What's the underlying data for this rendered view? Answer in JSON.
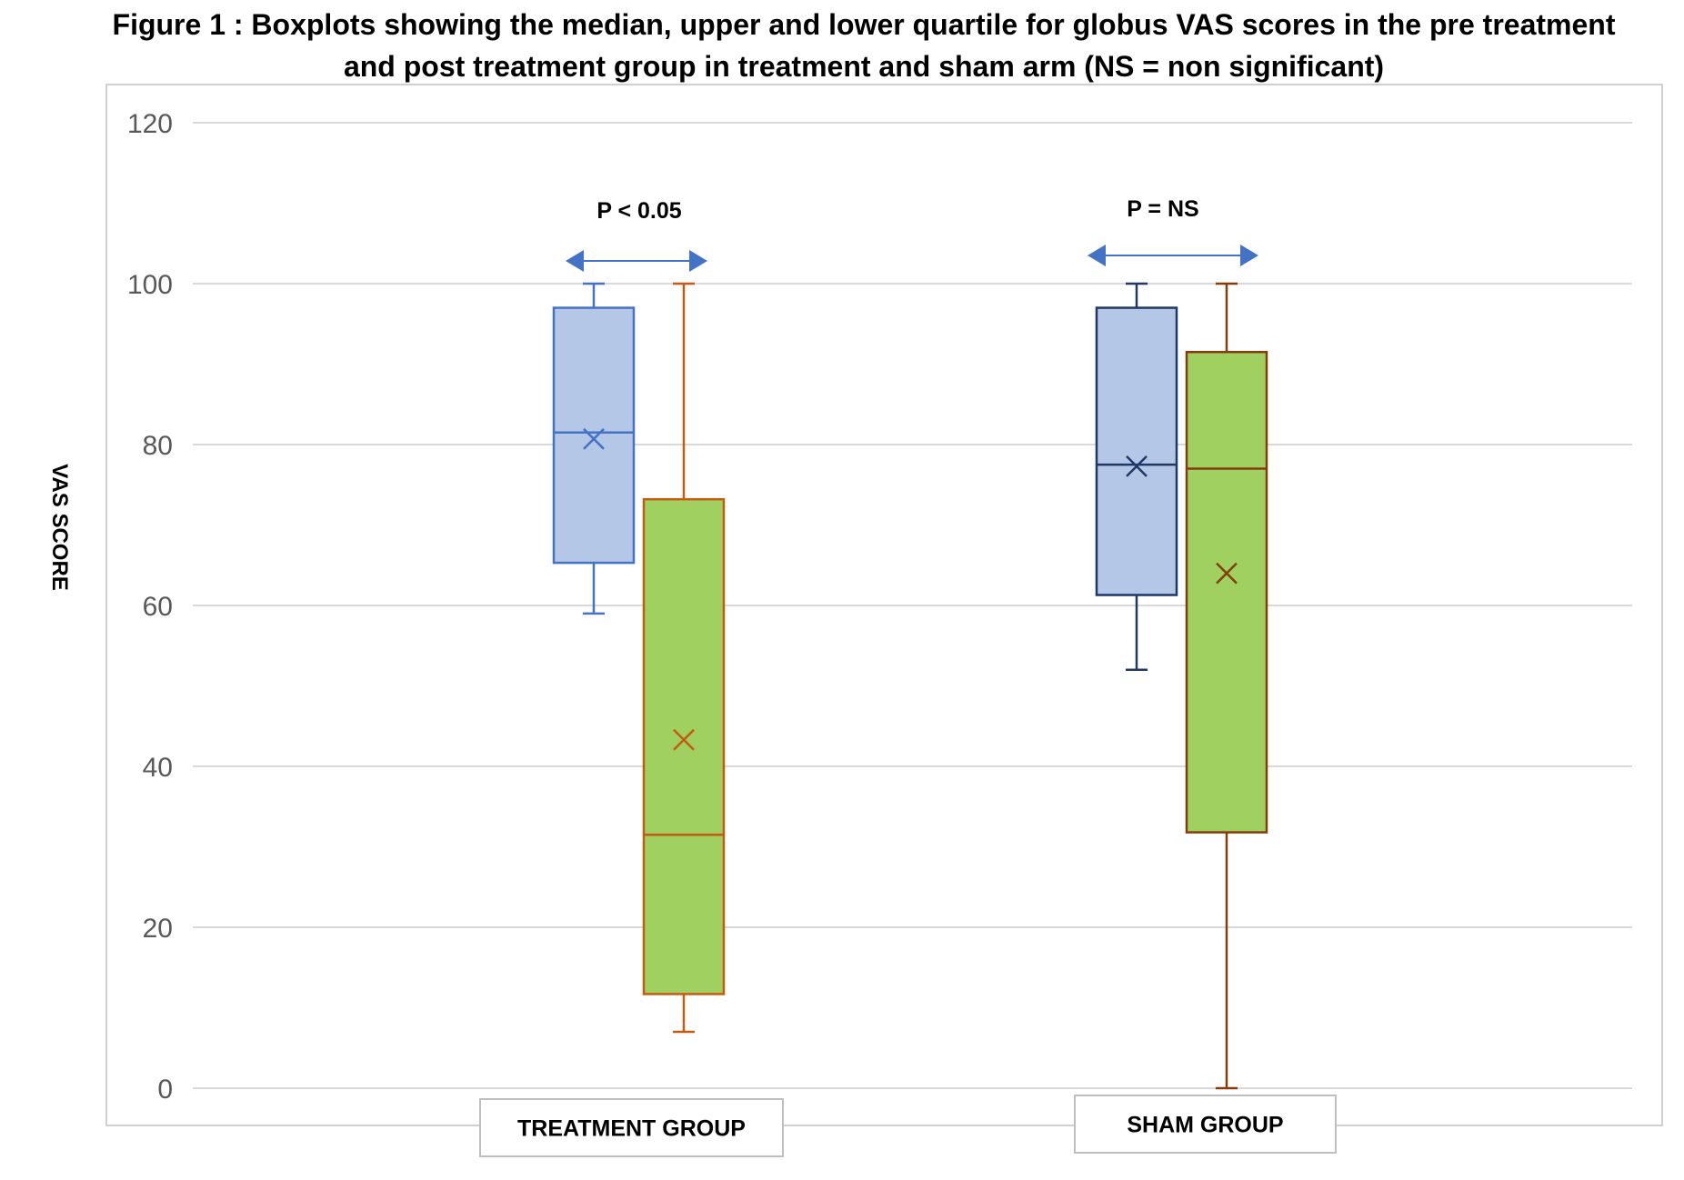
{
  "title": {
    "line1": "Figure 1 : Boxplots showing the median, upper and lower quartile for globus VAS scores in the pre treatment",
    "line2": "and post treatment group in treatment and sham arm (NS = non significant)"
  },
  "chart_data": {
    "type": "boxplot",
    "title": "Figure 1 : Boxplots showing the median, upper and lower quartile for globus VAS scores in the pre treatment and post treatment group in treatment and sham arm (NS = non significant)",
    "ylabel": "VAS SCORE",
    "xlabel": "",
    "ylim": [
      0,
      120
    ],
    "yticks": [
      0,
      20,
      40,
      60,
      80,
      100,
      120
    ],
    "grid": true,
    "categories": [
      "TREATMENT GROUP",
      "SHAM GROUP"
    ],
    "colors": {
      "pre_fill": "#b4c7e7",
      "pre_stroke": "#4472c4",
      "pre_stroke_dark": "#203864",
      "post_fill": "#a0d060",
      "post_stroke": "#c55a11",
      "post_stroke_dark": "#843c0c",
      "arrow": "#4472c4"
    },
    "groups": [
      {
        "category": "TREATMENT GROUP",
        "annotation": "P < 0.05",
        "boxes": [
          {
            "role": "pre",
            "min": 59,
            "q1": 65.3,
            "median": 81.5,
            "q3": 97,
            "max": 100,
            "mean": 80.7
          },
          {
            "role": "post",
            "min": 7,
            "q1": 11.7,
            "median": 31.5,
            "q3": 73.2,
            "max": 100,
            "mean": 43.3
          }
        ]
      },
      {
        "category": "SHAM GROUP",
        "annotation": "P = NS",
        "boxes": [
          {
            "role": "pre",
            "min": 52,
            "q1": 61.3,
            "median": 77.5,
            "q3": 97,
            "max": 100,
            "mean": 77.3
          },
          {
            "role": "post",
            "min": 0,
            "q1": 31.8,
            "median": 77,
            "q3": 91.5,
            "max": 100,
            "mean": 64
          }
        ]
      }
    ]
  }
}
